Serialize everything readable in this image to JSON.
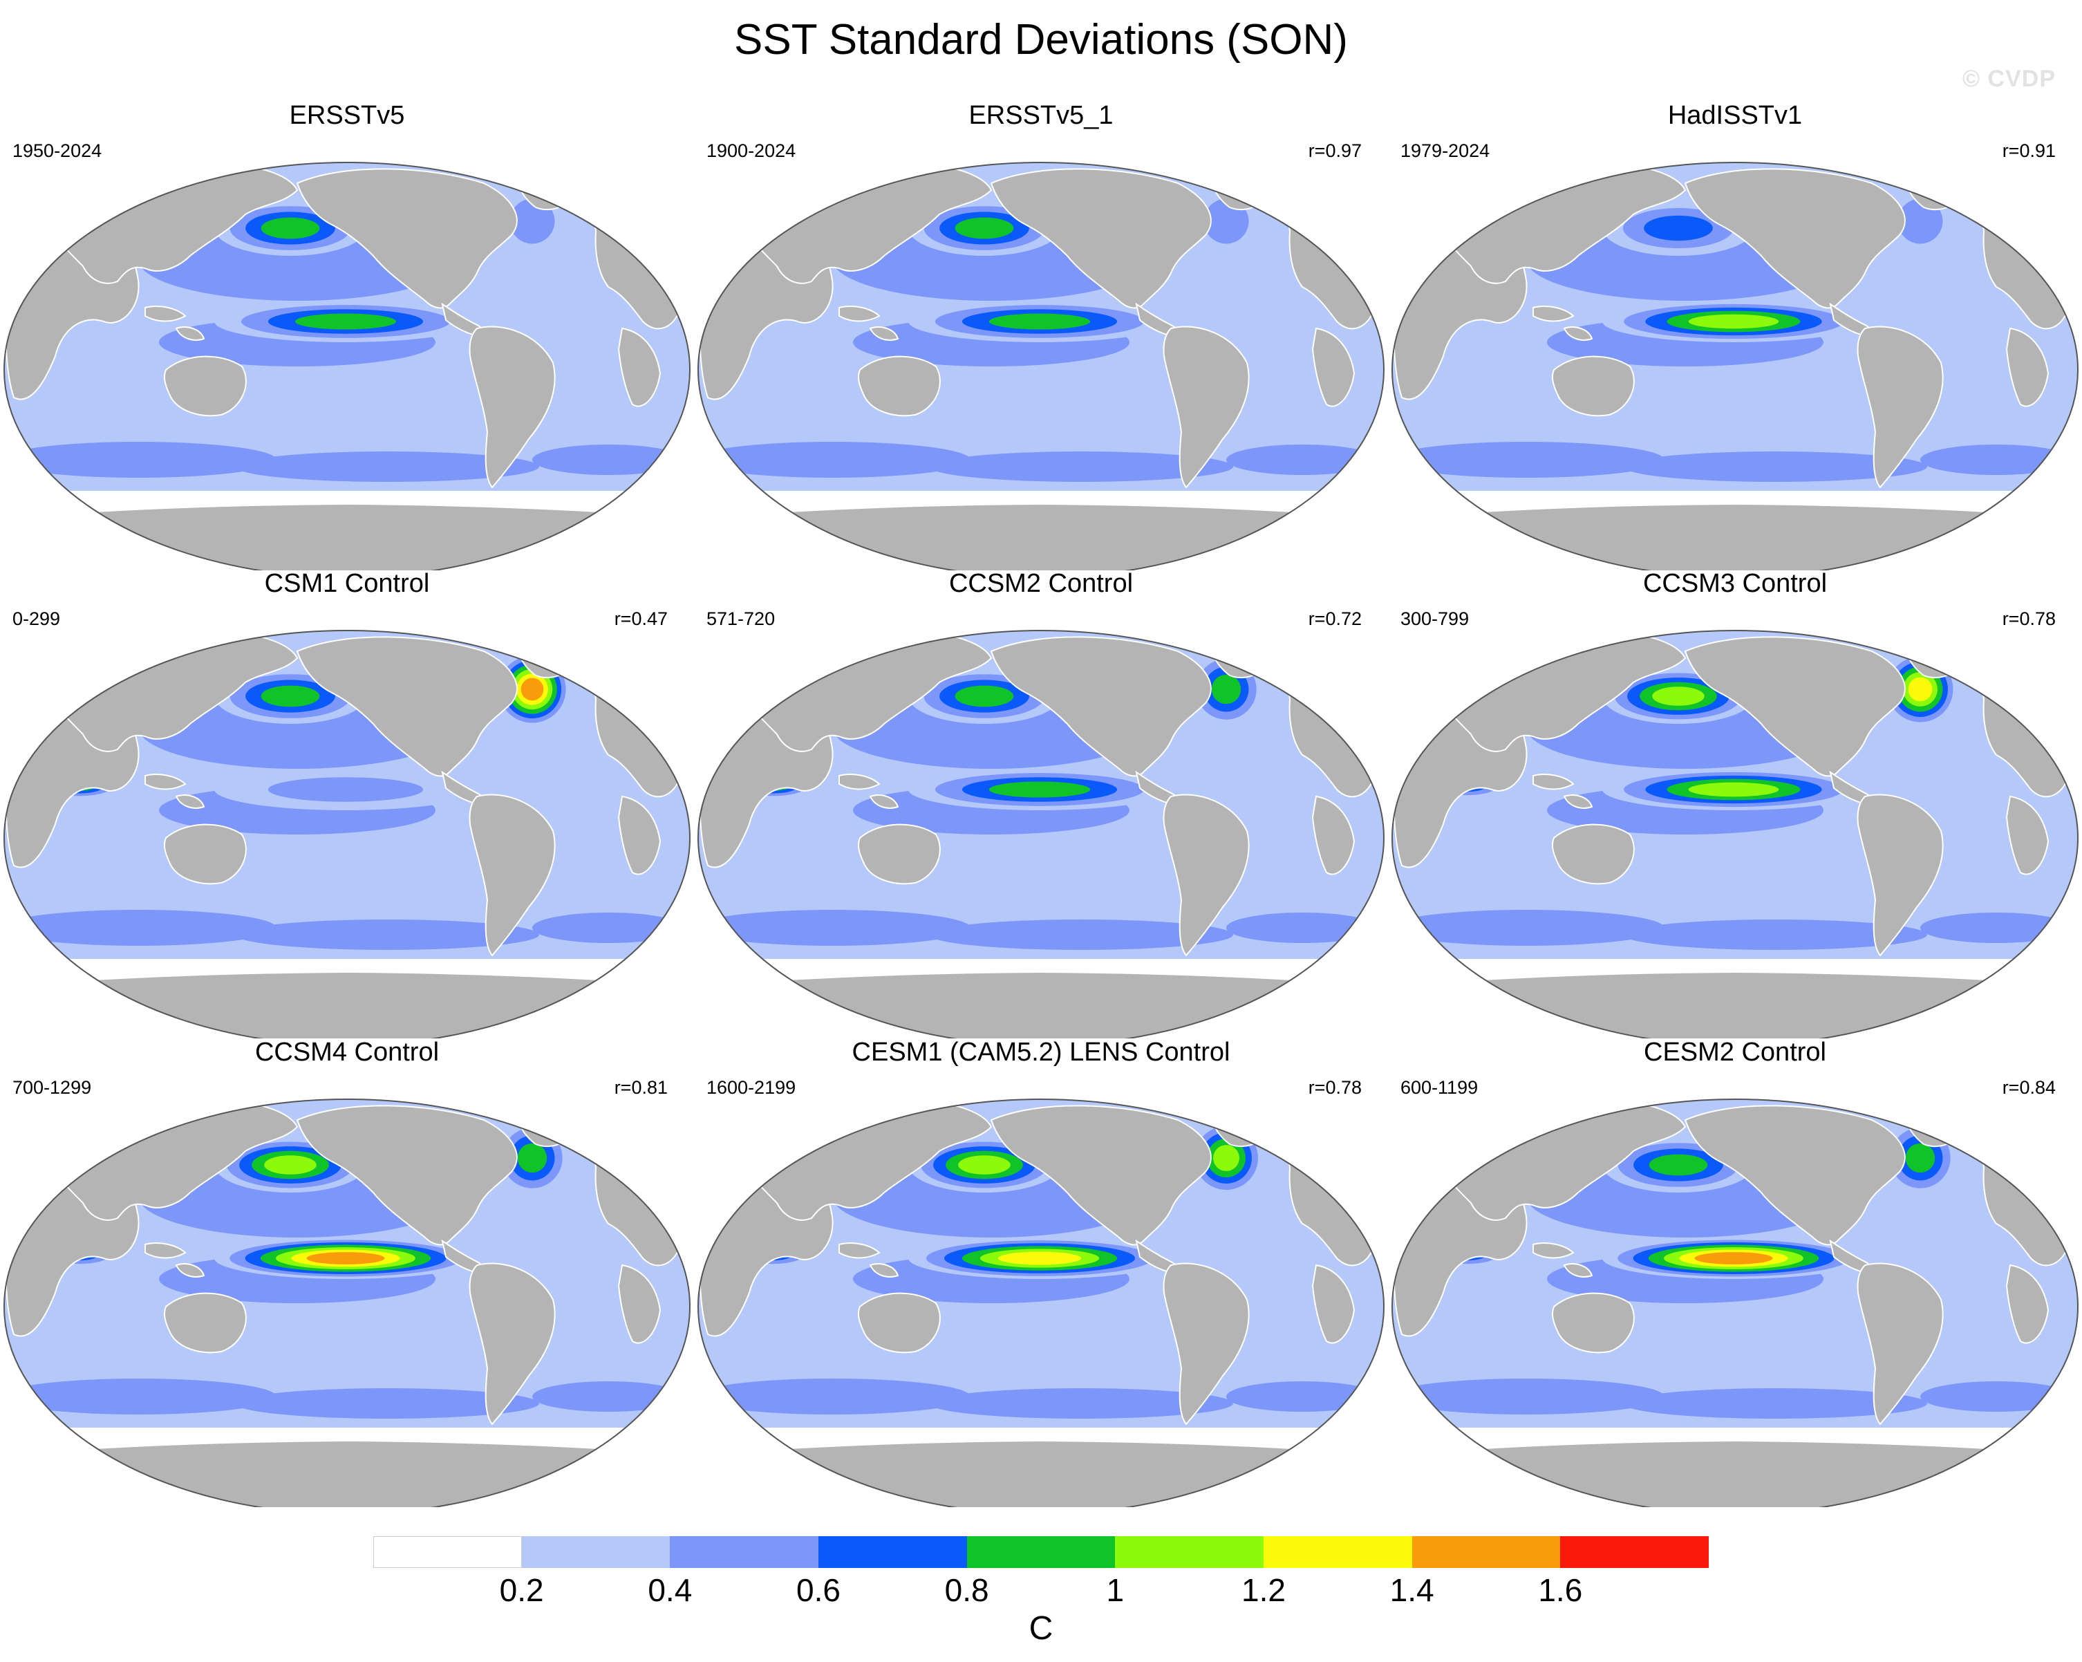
{
  "title": "SST Standard Deviations (SON)",
  "watermark": "© CVDP",
  "colors": {
    "land": "#b4b4b4",
    "ocean_levels": [
      "#ffffff",
      "#b4c8fa",
      "#7d96fa",
      "#0a5afa",
      "#0fc328",
      "#8cfa0a",
      "#fafa0a",
      "#fa9b0a",
      "#fa190a"
    ]
  },
  "panels": [
    {
      "title": "ERSSTv5",
      "years": "1950-2024",
      "r": "",
      "enso": 0.9,
      "npac": 0.85,
      "natl": 0.6,
      "hs": 0.0
    },
    {
      "title": "ERSSTv5_1",
      "years": "1900-2024",
      "r": "r=0.97",
      "enso": 0.85,
      "npac": 0.95,
      "natl": 0.6,
      "hs": 0.0
    },
    {
      "title": "HadISSTv1",
      "years": "1979-2024",
      "r": "r=0.91",
      "enso": 1.0,
      "npac": 0.75,
      "natl": 0.55,
      "hs": 0.0
    },
    {
      "title": "CSM1 Control",
      "years": "0-299",
      "r": "r=0.47",
      "enso": 0.55,
      "npac": 0.9,
      "natl": 1.5,
      "hs": 0.9
    },
    {
      "title": "CCSM2 Control",
      "years": "571-720",
      "r": "r=0.72",
      "enso": 0.85,
      "npac": 0.9,
      "natl": 0.85,
      "hs": 0.85
    },
    {
      "title": "CCSM3 Control",
      "years": "300-799",
      "r": "r=0.78",
      "enso": 1.2,
      "npac": 1.1,
      "natl": 1.25,
      "hs": 0.65
    },
    {
      "title": "CCSM4 Control",
      "years": "700-1299",
      "r": "r=0.81",
      "enso": 1.45,
      "npac": 1.1,
      "natl": 0.95,
      "hs": 0.75
    },
    {
      "title": "CESM1 (CAM5.2) LENS Control",
      "years": "1600-2199",
      "r": "r=0.78",
      "enso": 1.3,
      "npac": 1.0,
      "natl": 1.1,
      "hs": 0.7
    },
    {
      "title": "CESM2 Control",
      "years": "600-1199",
      "r": "r=0.84",
      "enso": 1.5,
      "npac": 0.95,
      "natl": 0.9,
      "hs": 0.7
    }
  ],
  "colorbar": {
    "colors": [
      "#ffffff",
      "#b4c8fa",
      "#7d96fa",
      "#0a5afa",
      "#0fc328",
      "#8cfa0a",
      "#fafa0a",
      "#fa9b0a",
      "#fa190a"
    ],
    "labels": [
      "0.2",
      "0.4",
      "0.6",
      "0.8",
      "1",
      "1.2",
      "1.4",
      "1.6"
    ],
    "unit": "C"
  }
}
